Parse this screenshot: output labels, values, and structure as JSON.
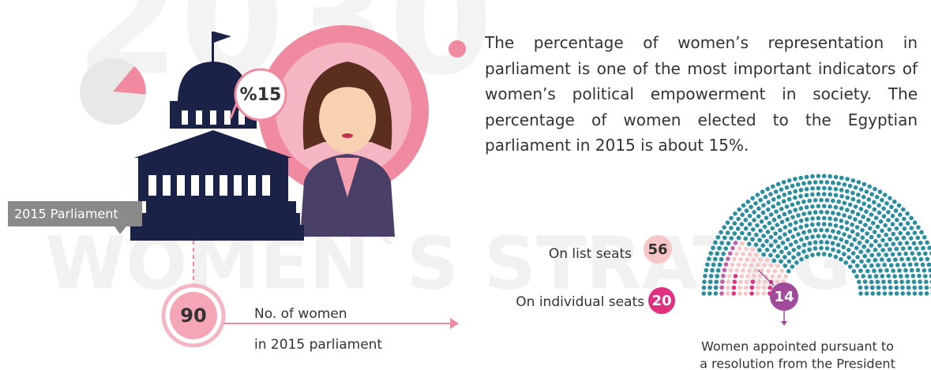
{
  "watermark": {
    "year": "2030",
    "title": "WOMEN`S STRATEGY"
  },
  "parliament": {
    "label": "2015 Parliament",
    "share": "%15"
  },
  "women": {
    "count": 90,
    "caption_line1": "No. of women",
    "caption_line2": "in 2015 parliament"
  },
  "description": "The percentage of women’s representation in parliament is one of the most important indicators of women’s political empowerment in society. The percentage of women elected to the Egyptian parliament in 2015 is about 15%.",
  "seats": {
    "list": {
      "label": "On list seats",
      "count": 56
    },
    "individual": {
      "label": "On individual seats",
      "count": 20
    },
    "appointed": {
      "count": 14,
      "caption_line1": "Women appointed pursuant to",
      "caption_line2": "a resolution from the President"
    }
  }
}
